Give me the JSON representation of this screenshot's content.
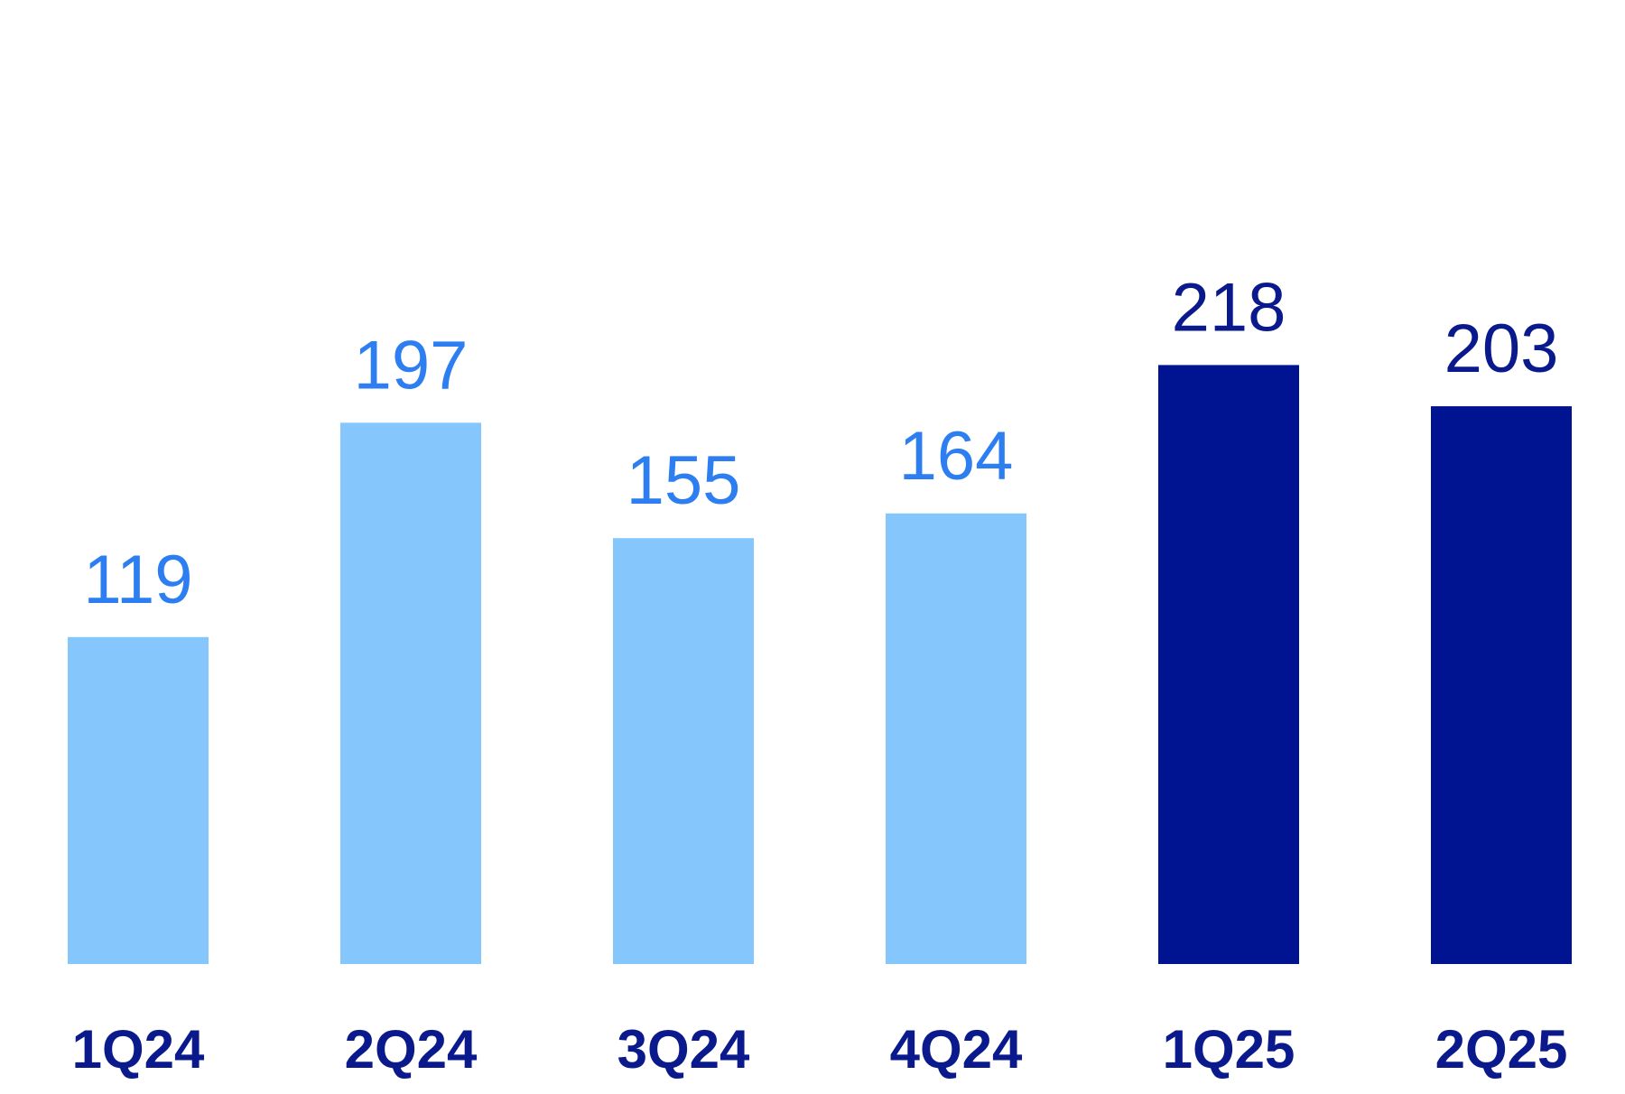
{
  "chart_data": {
    "type": "bar",
    "categories": [
      "1Q24",
      "2Q24",
      "3Q24",
      "4Q24",
      "1Q25",
      "2Q25"
    ],
    "values": [
      119,
      197,
      155,
      164,
      218,
      203
    ],
    "data_labels": [
      "119",
      "197",
      "155",
      "164",
      "218",
      "203"
    ],
    "title": "",
    "xlabel": "",
    "ylabel": "",
    "ylim": [
      0,
      240
    ],
    "grid": false,
    "legend": "none",
    "colors": {
      "bar_2024": "#85c7fc",
      "label_2024": "#2d7ef0",
      "bar_2025": "#001391",
      "label_2025": "#0a1a8c",
      "category_label": "#0a1a8c"
    },
    "bar_color_group": [
      "2024",
      "2024",
      "2024",
      "2024",
      "2025",
      "2025"
    ]
  }
}
